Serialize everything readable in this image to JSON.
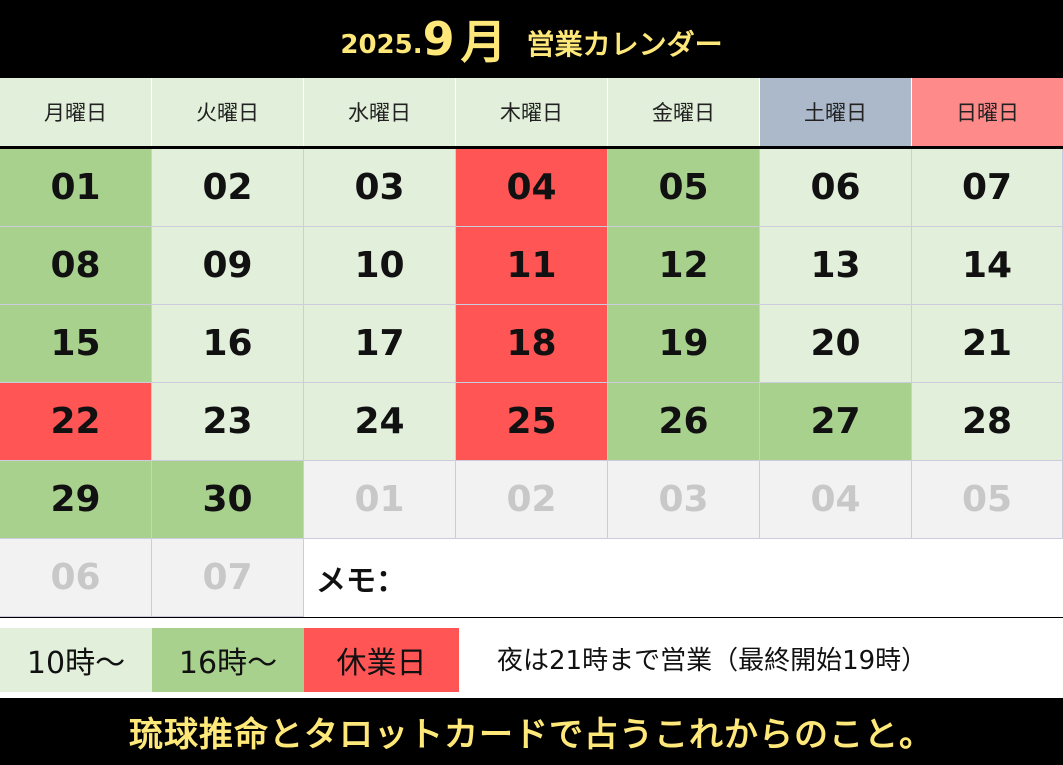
{
  "header": {
    "year": "2025.",
    "month": "9",
    "month_unit": "月",
    "title": "営業カレンダー"
  },
  "weekdays": [
    {
      "label": "月曜日"
    },
    {
      "label": "火曜日"
    },
    {
      "label": "水曜日"
    },
    {
      "label": "木曜日"
    },
    {
      "label": "金曜日"
    },
    {
      "label": "土曜日"
    },
    {
      "label": "日曜日"
    }
  ],
  "weeks": [
    [
      {
        "day": "01",
        "status": "green"
      },
      {
        "day": "02",
        "status": "light"
      },
      {
        "day": "03",
        "status": "light"
      },
      {
        "day": "04",
        "status": "red"
      },
      {
        "day": "05",
        "status": "green"
      },
      {
        "day": "06",
        "status": "light"
      },
      {
        "day": "07",
        "status": "light"
      }
    ],
    [
      {
        "day": "08",
        "status": "green"
      },
      {
        "day": "09",
        "status": "light"
      },
      {
        "day": "10",
        "status": "light"
      },
      {
        "day": "11",
        "status": "red"
      },
      {
        "day": "12",
        "status": "green"
      },
      {
        "day": "13",
        "status": "light"
      },
      {
        "day": "14",
        "status": "light"
      }
    ],
    [
      {
        "day": "15",
        "status": "green"
      },
      {
        "day": "16",
        "status": "light"
      },
      {
        "day": "17",
        "status": "light"
      },
      {
        "day": "18",
        "status": "red"
      },
      {
        "day": "19",
        "status": "green"
      },
      {
        "day": "20",
        "status": "light"
      },
      {
        "day": "21",
        "status": "light"
      }
    ],
    [
      {
        "day": "22",
        "status": "red"
      },
      {
        "day": "23",
        "status": "light"
      },
      {
        "day": "24",
        "status": "light"
      },
      {
        "day": "25",
        "status": "red"
      },
      {
        "day": "26",
        "status": "green"
      },
      {
        "day": "27",
        "status": "green"
      },
      {
        "day": "28",
        "status": "light"
      }
    ],
    [
      {
        "day": "29",
        "status": "green"
      },
      {
        "day": "30",
        "status": "green"
      },
      {
        "day": "01",
        "status": "grey"
      },
      {
        "day": "02",
        "status": "grey"
      },
      {
        "day": "03",
        "status": "grey"
      },
      {
        "day": "04",
        "status": "grey"
      },
      {
        "day": "05",
        "status": "grey"
      }
    ]
  ],
  "last_row": [
    {
      "day": "06",
      "status": "grey"
    },
    {
      "day": "07",
      "status": "grey"
    }
  ],
  "memo_label": "メモ：",
  "legend": {
    "light": "10時～",
    "green": "16時～",
    "red": "休業日",
    "note": "夜は21時まで営業（最終開始19時）"
  },
  "footer": "琉球推命とタロットカードで占うこれからのこと。",
  "colors": {
    "light": "#E2EFDA",
    "green": "#A9D18E",
    "red": "#FF5555",
    "grey": "#F2F2F2",
    "saturday": "#ACB9CA",
    "sunday": "#FF8A8A",
    "header_text": "#FFE87A"
  }
}
